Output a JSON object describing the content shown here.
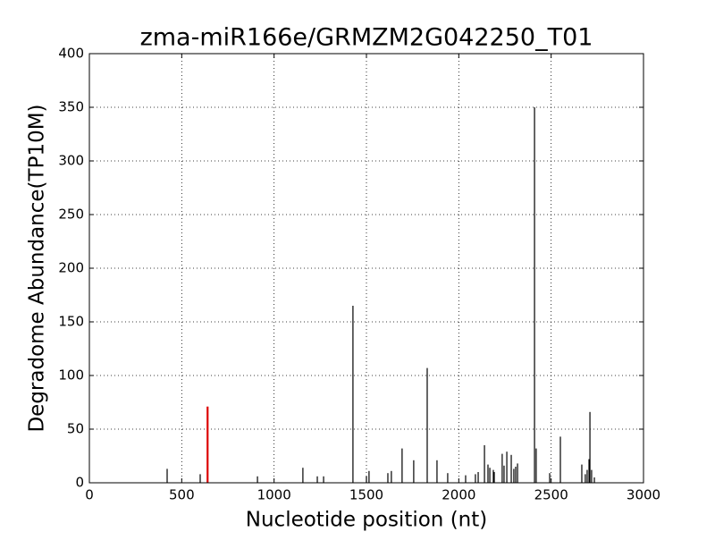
{
  "chart_data": {
    "type": "stem",
    "title": "zma-miR166e/GRMZM2G042250_T01",
    "x_label": "Nucleotide position (nt)",
    "y_label": "Degradome Abundance(TP10M)",
    "x": [
      421,
      600,
      910,
      1156,
      1234,
      1268,
      1427,
      1500,
      1514,
      1616,
      1635,
      1693,
      1756,
      1829,
      1882,
      1940,
      2037,
      2090,
      2105,
      2139,
      2158,
      2168,
      2187,
      2192,
      2235,
      2245,
      2260,
      2284,
      2298,
      2308,
      2318,
      2410,
      2419,
      2492,
      2550,
      2666,
      2685,
      2695,
      2705,
      2710,
      2719,
      2734
    ],
    "values": [
      13,
      8,
      6,
      14,
      6,
      6,
      165,
      6,
      11,
      9,
      11,
      32,
      21,
      107,
      21,
      9,
      7,
      8,
      10,
      35,
      17,
      14,
      12,
      10,
      27,
      16,
      29,
      26,
      13,
      15,
      18,
      350,
      32,
      9,
      43,
      17,
      8,
      12,
      22,
      66,
      12,
      5
    ],
    "color": "#000000",
    "highlight": {
      "x": 640,
      "value": 71,
      "color": "#dd0000"
    },
    "xlim": [
      0,
      3000
    ],
    "xticks": [
      0,
      500,
      1000,
      1500,
      2000,
      2500,
      3000
    ],
    "ylim": [
      0,
      400
    ],
    "yticks": [
      0,
      50,
      100,
      150,
      200,
      250,
      300,
      350,
      400
    ],
    "grid": true
  }
}
